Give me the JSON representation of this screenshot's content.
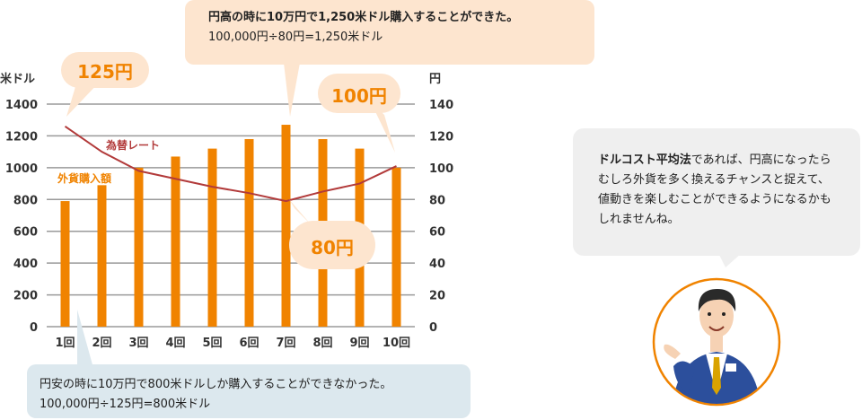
{
  "chart_data": {
    "type": "bar",
    "categories": [
      "1回",
      "2回",
      "3回",
      "4回",
      "5回",
      "6回",
      "7回",
      "8回",
      "9回",
      "10回"
    ],
    "series": [
      {
        "name": "外貨購入額",
        "type": "bar",
        "axis": "left",
        "values": [
          790,
          890,
          1000,
          1070,
          1120,
          1180,
          1270,
          1180,
          1120,
          1000
        ],
        "color": "#f08300"
      },
      {
        "name": "為替レート",
        "type": "line",
        "axis": "right",
        "values": [
          126,
          110,
          98,
          93,
          88,
          84,
          79,
          85,
          90,
          101
        ],
        "color": "#b23a3a"
      }
    ],
    "left_axis": {
      "label": "米ドル",
      "min": 0,
      "max": 1400,
      "ticks": [
        0,
        200,
        400,
        600,
        800,
        1000,
        1200,
        1400
      ]
    },
    "right_axis": {
      "label": "円",
      "min": 0,
      "max": 140,
      "ticks": [
        0,
        20,
        40,
        60,
        80,
        100,
        120,
        140
      ]
    },
    "grid": true,
    "annotations": {
      "label_125": "125円",
      "label_80": "80円",
      "label_100": "100円"
    }
  },
  "callouts": {
    "top": {
      "line1": "円高の時に10万円で1,250米ドル購入することができた。",
      "line2": "100,000円÷80円=1,250米ドル"
    },
    "bottom": {
      "line1": "円安の時に10万円で800米ドルしか購入することができなかった。",
      "line2": "100,000円÷125円=800米ドル"
    }
  },
  "message": {
    "bold": "ドルコスト平均法",
    "rest": "であれば、円高になったらむしろ外貨を多く換えるチャンスと捉えて、値動きを楽しむことができるようになるかもしれませんね。"
  },
  "colors": {
    "accent": "#f08300",
    "line": "#b23a3a",
    "sparkle": "#f3c93a"
  }
}
